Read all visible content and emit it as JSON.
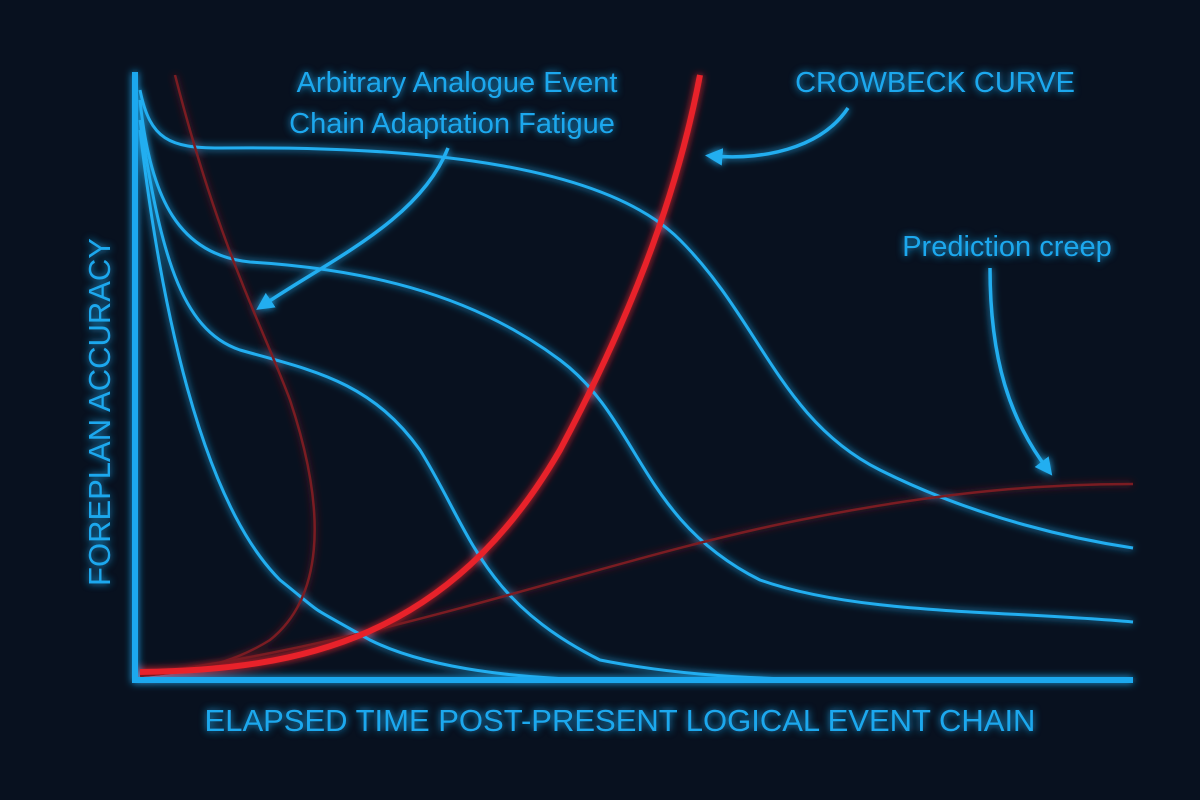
{
  "annotations": {
    "fatigue": [
      "Arbitrary Analogue Event",
      "Chain Adaptation Fatigue"
    ],
    "crowbeck": "CROWBECK CURVE",
    "creep": "Prediction creep"
  },
  "axes": {
    "y_label": "FOREPLAN ACCURACY",
    "x_label": "ELAPSED TIME POST-PRESENT LOGICAL EVENT CHAIN"
  }
}
